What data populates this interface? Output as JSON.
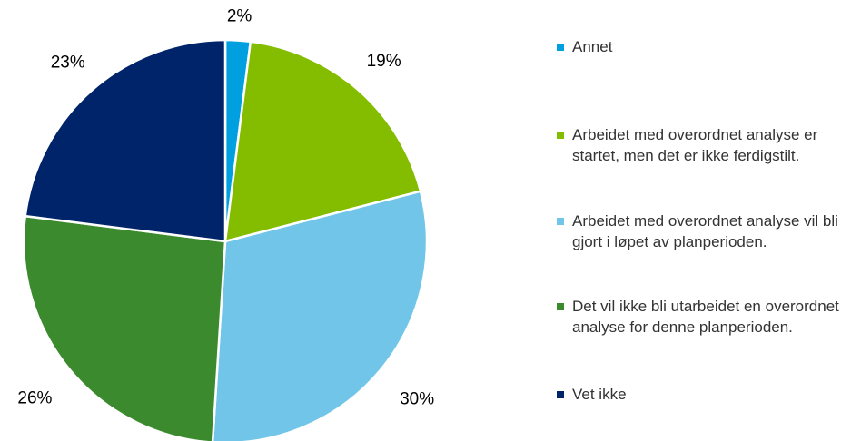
{
  "chart_data": {
    "type": "pie",
    "categories": [
      "Annet",
      "Arbeidet med overordnet analyse er startet, men det er ikke ferdigstilt.",
      "Arbeidet med overordnet analyse vil bli gjort i løpet av planperioden.",
      "Det vil ikke bli utarbeidet en overordnet analyse for denne planperioden.",
      "Vet ikke"
    ],
    "values": [
      2,
      19,
      30,
      26,
      23
    ],
    "value_labels": [
      "2%",
      "19%",
      "30%",
      "26%",
      "23%"
    ],
    "colors": [
      "#00a0e0",
      "#84bd00",
      "#71c5e8",
      "#3c8a2e",
      "#002469"
    ],
    "legend": "right"
  }
}
